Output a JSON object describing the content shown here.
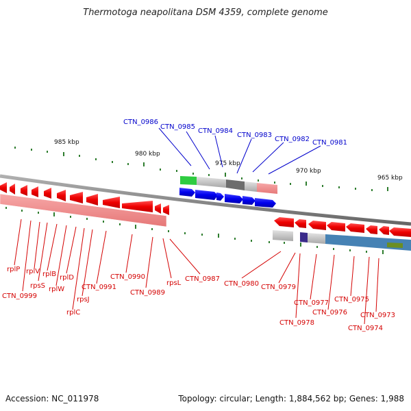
{
  "title": "Thermotoga neapolitana DSM 4359, complete genome",
  "footer": {
    "accession": "Accession: NC_011978",
    "topology": "Topology: circular; Length: 1,884,562 bp; Genes: 1,988"
  },
  "ticks": [
    "985 kbp",
    "980 kbp",
    "975 kbp",
    "970 kbp",
    "965 kbp"
  ],
  "genes_top": [
    "CTN_0986",
    "CTN_0985",
    "CTN_0984",
    "CTN_0983",
    "CTN_0982",
    "CTN_0981"
  ],
  "genes_left": [
    "rplP",
    "CTN_0999",
    "rplV",
    "rpsS",
    "rplB",
    "rplW",
    "rplD",
    "rplC",
    "rpsJ",
    "CTN_0991",
    "CTN_0990",
    "CTN_0989",
    "rpsL",
    "CTN_0987"
  ],
  "genes_right": [
    "CTN_0980",
    "CTN_0979",
    "CTN_0978",
    "CTN_0977",
    "CTN_0976",
    "CTN_0975",
    "CTN_0974",
    "CTN_0973"
  ],
  "colors": {
    "forward_gene": "#0000ee",
    "reverse_gene": "#ee0000",
    "backbone": "#888888",
    "tick": "#2e7d2e",
    "label_red": "#d40000",
    "label_blue": "#0000cc"
  }
}
